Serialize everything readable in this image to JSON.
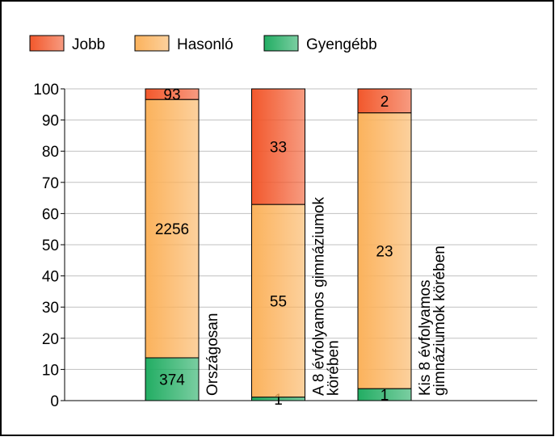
{
  "chart_data": {
    "type": "bar",
    "stacking": "percent",
    "categories": [
      "Országosan",
      "A 8 évfolyamos gimnáziumok körében",
      "Kis 8 évfolyamos gimnáziumok körében"
    ],
    "series": [
      {
        "name": "Jobb",
        "color": "#f2582c",
        "values": [
          93,
          33,
          2
        ]
      },
      {
        "name": "Hasonló",
        "color": "#fbb25c",
        "values": [
          2256,
          55,
          23
        ]
      },
      {
        "name": "Gyengébb",
        "color": "#22ad63",
        "values": [
          374,
          1,
          1
        ]
      }
    ],
    "ylim": [
      0,
      100
    ],
    "yticks": [
      0,
      10,
      20,
      30,
      40,
      50,
      60,
      70,
      80,
      90,
      100
    ],
    "grid": true,
    "legend": "top"
  }
}
